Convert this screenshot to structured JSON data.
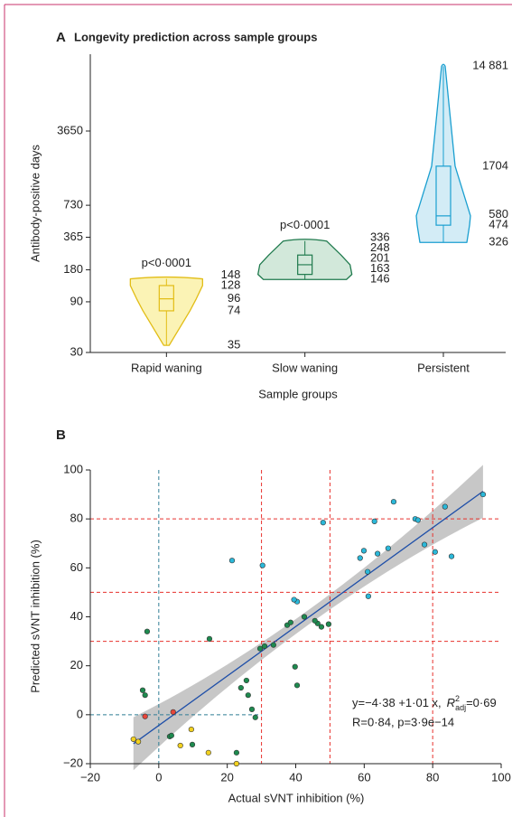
{
  "chart_data": [
    {
      "type": "violin",
      "panel": "A",
      "title": "Longevity prediction across sample groups",
      "y_label": "Antibody-positive days",
      "x_label": "Sample groups",
      "categories": [
        "Rapid waning",
        "Slow waning",
        "Persistent"
      ],
      "colors": [
        "#e2bd16",
        "#1f7a4d",
        "#1a9fd0"
      ],
      "fills": [
        "#fbf3b5",
        "#d2e8da",
        "#d3ecf6"
      ],
      "values": [
        [
          35,
          74,
          96,
          128,
          148
        ],
        [
          146,
          163,
          201,
          248,
          336
        ],
        [
          326,
          474,
          580,
          1704,
          14881
        ]
      ],
      "value_labels": [
        [
          "35",
          "74",
          "96",
          "128",
          "148"
        ],
        [
          "146",
          "163",
          "201",
          "248",
          "336"
        ],
        [
          "326",
          "474",
          "580",
          "1704",
          "14 881"
        ]
      ],
      "annotations": [
        "p<0·0001",
        "p<0·0001",
        null
      ],
      "log_scale": true,
      "ylim": [
        30,
        19300
      ],
      "yticks": [
        30,
        90,
        180,
        365,
        730,
        3650
      ]
    },
    {
      "type": "scatter",
      "panel": "B",
      "x_label": "Actual sVNT inhibition (%)",
      "y_label": "Predicted sVNT inhibition (%)",
      "xlim": [
        -20,
        100
      ],
      "ylim": [
        -20,
        100
      ],
      "xticks": [
        {
          "value": -20,
          "label": "−20"
        },
        0,
        20,
        40,
        60,
        80,
        100
      ],
      "yticks": [
        {
          "value": -20,
          "label": "−20"
        },
        0,
        20,
        40,
        60,
        80,
        100
      ],
      "ref_lines": [
        30,
        50,
        80
      ],
      "ref_color": "#e8322d",
      "zero_line": 0,
      "zero_color": "#2f7d95",
      "fit": {
        "intercept": -4.38,
        "slope": 1.01,
        "color": "#1f4fa8",
        "band_color": "#bdbdbd"
      },
      "fit_text": {
        "equation": "y=−4·38 +1·01 x,",
        "r2_symbol": "R",
        "r2_sup": "2",
        "r2_sub": "adj",
        "r2_value": "=0·69",
        "stats": "R=0·84, p=3·9e−14"
      },
      "series": [
        {
          "color": "#2bb8d9",
          "x": [
            94.7,
            83.6,
            74.9,
            63,
            75.7,
            77.6,
            80.7,
            85.5,
            68.6,
            67,
            63.9,
            59.9,
            58.8,
            61,
            61.2,
            21.4,
            30.3,
            48,
            40.4,
            39.5
          ],
          "y": [
            90,
            85,
            80,
            79,
            79.5,
            69.5,
            66.5,
            64.7,
            87,
            68,
            65.8,
            67,
            64,
            58.4,
            48.4,
            63,
            61,
            78.5,
            46.2,
            47
          ]
        },
        {
          "color": "#1e8a4f",
          "x": [
            -3.4,
            -4.7,
            -4,
            14.8,
            30.9,
            29.6,
            33.5,
            37.5,
            38.5,
            42.5,
            46.4,
            49.6,
            47.5,
            45.6,
            39.8,
            40.4,
            25.6,
            26.1,
            24,
            27.2,
            28.2,
            22.7,
            3.2,
            3.7,
            9.8
          ],
          "y": [
            34,
            10,
            8,
            31,
            28,
            27,
            28.5,
            36.6,
            37.7,
            40,
            37.3,
            37,
            35.9,
            38.4,
            19.6,
            12,
            14,
            8,
            11,
            2.2,
            -1.1,
            -15.5,
            -8.9,
            -8.5,
            -12.2
          ]
        },
        {
          "color": "#f2d11f",
          "x": [
            -7.4,
            -6,
            9.5,
            6.3,
            14.5,
            22.7
          ],
          "y": [
            -10,
            -11,
            -6,
            -12.6,
            -15.5,
            -20
          ]
        },
        {
          "color": "#e8463a",
          "x": [
            -4,
            4.2
          ],
          "y": [
            -0.7,
            1.1
          ]
        }
      ]
    }
  ]
}
